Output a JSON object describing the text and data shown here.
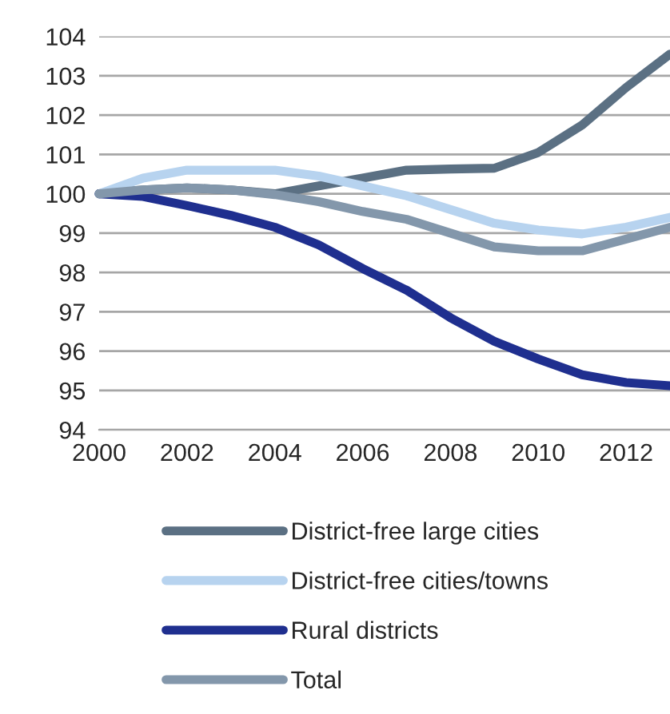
{
  "chart_data": {
    "type": "line",
    "x": [
      2000,
      2001,
      2002,
      2003,
      2004,
      2005,
      2006,
      2007,
      2008,
      2009,
      2010,
      2011,
      2012,
      2013
    ],
    "series": [
      {
        "name": "District-free large cities",
        "color": "#5b7083",
        "values": [
          100,
          100.1,
          100.15,
          100.1,
          100.0,
          100.2,
          100.4,
          100.6,
          100.63,
          100.65,
          101.05,
          101.75,
          102.7,
          103.55
        ]
      },
      {
        "name": "District-free cities/towns",
        "color": "#b7d3ef",
        "values": [
          100,
          100.4,
          100.6,
          100.6,
          100.6,
          100.45,
          100.2,
          99.95,
          99.6,
          99.25,
          99.08,
          98.98,
          99.15,
          99.4
        ]
      },
      {
        "name": "Rural districts",
        "color": "#1f2f8f",
        "values": [
          100,
          99.93,
          99.7,
          99.45,
          99.15,
          98.7,
          98.1,
          97.55,
          96.85,
          96.25,
          95.8,
          95.4,
          95.2,
          95.12
        ]
      },
      {
        "name": "Total",
        "color": "#8397ab",
        "values": [
          100,
          100.1,
          100.15,
          100.1,
          99.98,
          99.8,
          99.55,
          99.35,
          99.0,
          98.65,
          98.55,
          98.55,
          98.85,
          99.15
        ]
      }
    ],
    "xlim": [
      2000,
      2013
    ],
    "xticks": [
      2000,
      2002,
      2004,
      2006,
      2008,
      2010,
      2012
    ],
    "ylim": [
      94,
      104
    ],
    "yticks": [
      94,
      95,
      96,
      97,
      98,
      99,
      100,
      101,
      102,
      103,
      104
    ],
    "grid": "y",
    "legend": "bottom",
    "marker": "none",
    "line_style": "solid"
  }
}
